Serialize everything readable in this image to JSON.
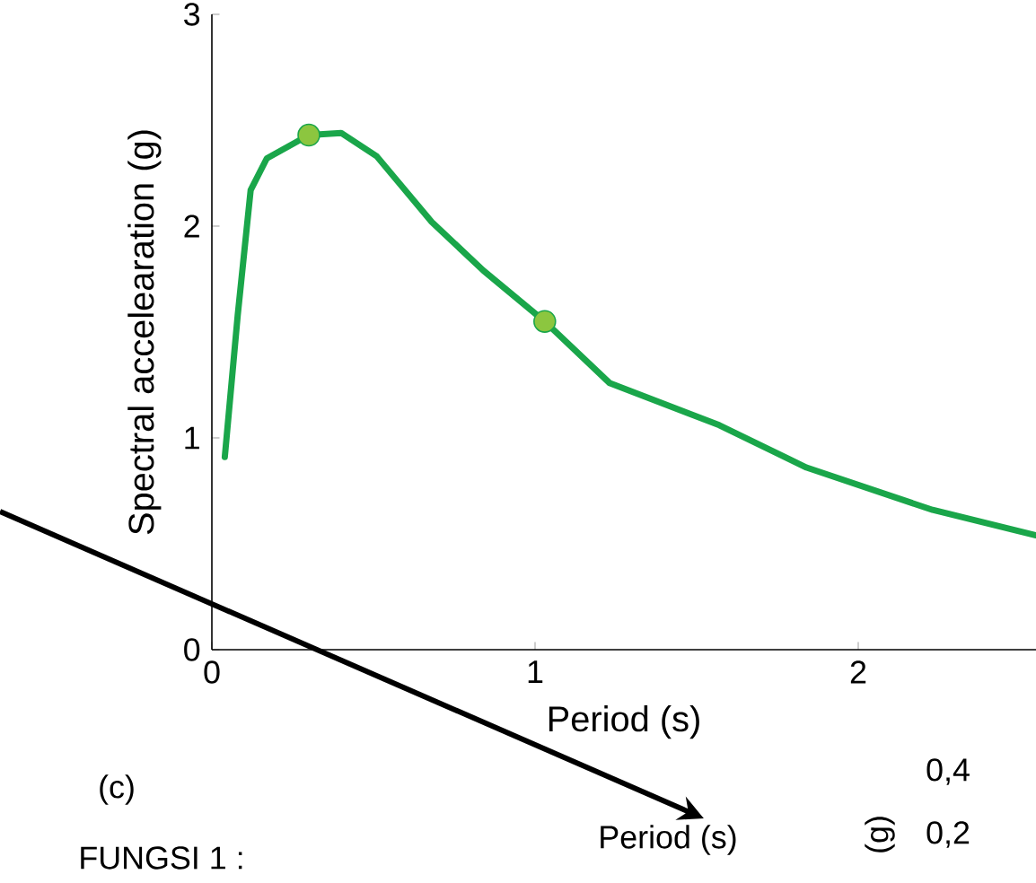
{
  "chart_data": {
    "type": "line",
    "xlabel": "Period (s)",
    "ylabel": "Spectral accelearation (g)",
    "xlim": [
      0,
      2.55
    ],
    "ylim": [
      0,
      3
    ],
    "xticks": [
      0,
      1,
      2
    ],
    "yticks": [
      0,
      1,
      2,
      3
    ],
    "annotations": [
      "(c)",
      "Period (s)",
      "FUNGSI 1 :",
      "0,4",
      "0,2",
      "(g)"
    ],
    "series": [
      {
        "color": "#1aa64a",
        "marker": "none",
        "x": [
          0.04,
          0.08,
          0.12,
          0.17,
          0.3,
          0.4,
          0.51,
          0.68,
          0.84,
          1.03,
          1.23,
          1.57,
          1.84,
          2.23,
          2.55
        ],
        "values": [
          0.91,
          1.58,
          2.17,
          2.32,
          2.43,
          2.44,
          2.33,
          2.02,
          1.79,
          1.55,
          1.26,
          1.06,
          0.86,
          0.66,
          0.54
        ]
      },
      {
        "type": "scatter",
        "color": "#8cc63f",
        "marker": "circle",
        "x": [
          0.3,
          1.03
        ],
        "values": [
          2.43,
          1.55
        ]
      }
    ]
  }
}
